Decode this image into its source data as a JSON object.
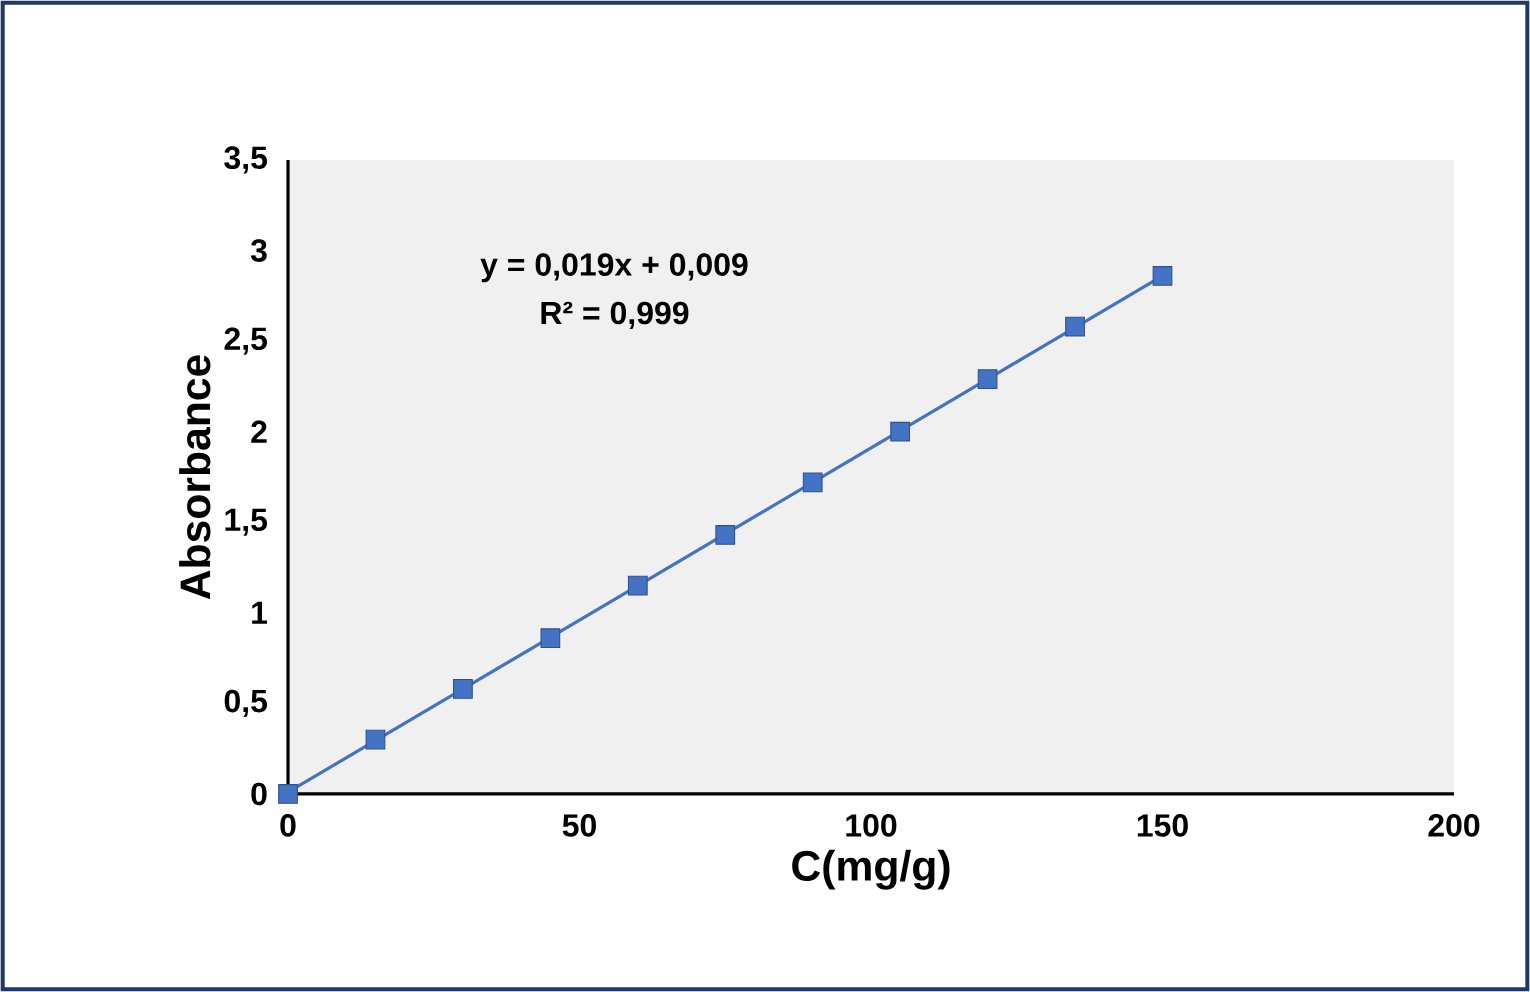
{
  "chart_data": {
    "type": "scatter",
    "xlabel": "C(mg/g)",
    "ylabel": "Absorbance",
    "annotations": [
      "y = 0,019x + 0,009",
      "R² = 0,999"
    ],
    "xlim": [
      0,
      200
    ],
    "xticks": [
      0,
      50,
      100,
      150,
      200
    ],
    "ylim": [
      0,
      3.5
    ],
    "yticks": [
      0,
      {
        "value": 0.5,
        "label": "0,5"
      },
      1,
      {
        "value": 1.5,
        "label": "1,5"
      },
      2,
      {
        "value": 2.5,
        "label": "2,5"
      },
      3,
      {
        "value": 3.5,
        "label": "3,5"
      }
    ],
    "series": [
      {
        "marker": "square",
        "color": "#4472c4",
        "x": [
          0,
          15,
          30,
          45,
          60,
          75,
          90,
          105,
          120,
          135,
          150
        ],
        "values": [
          0,
          0.3,
          0.58,
          0.86,
          1.15,
          1.43,
          1.72,
          2.0,
          2.29,
          2.58,
          2.86
        ]
      },
      {
        "type": "line",
        "color": "#4472c4",
        "x": [
          0,
          150
        ],
        "values": [
          0.01,
          2.86
        ]
      }
    ]
  }
}
